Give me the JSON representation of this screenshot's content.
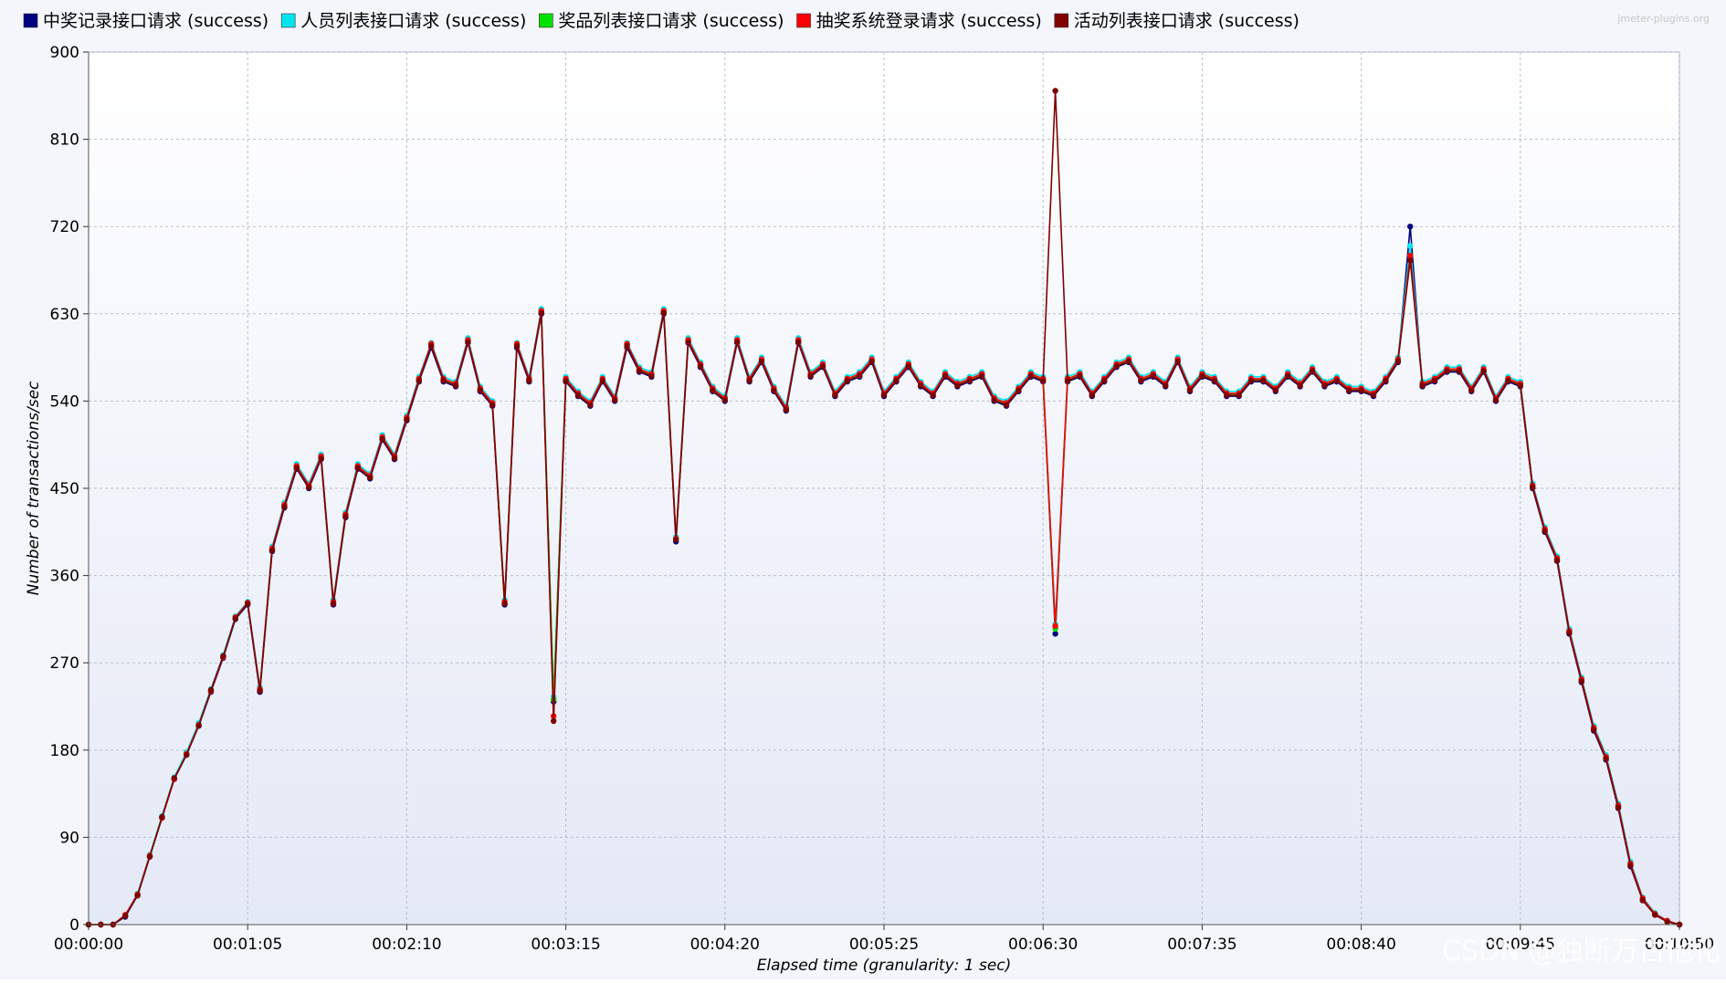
{
  "watermark": "CSDN @独断万古他化",
  "plugin_credit": "jmeter-plugins.org",
  "chart_data": {
    "type": "line",
    "ylabel": "Number of transactions/sec",
    "xlabel": "Elapsed time (granularity: 1 sec)",
    "ylim": [
      0,
      900
    ],
    "y_ticks": [
      0,
      90,
      180,
      270,
      360,
      450,
      540,
      630,
      720,
      810,
      900
    ],
    "y_tick_labels": [
      "0",
      "90",
      "180",
      "270",
      "360",
      "450",
      "540",
      "630",
      "720",
      "810",
      "900"
    ],
    "x_range_seconds": [
      0,
      650
    ],
    "x_ticks_seconds": [
      0,
      65,
      130,
      195,
      260,
      325,
      390,
      455,
      520,
      585,
      650
    ],
    "x_tick_labels": [
      "00:00:00",
      "00:01:05",
      "00:02:10",
      "00:03:15",
      "00:04:20",
      "00:05:25",
      "00:06:30",
      "00:07:35",
      "00:08:40",
      "00:09:45",
      "00:10:50"
    ],
    "grid": true,
    "legend_position": "top",
    "x_unit": "seconds elapsed",
    "x": [
      0,
      5,
      10,
      15,
      20,
      25,
      30,
      35,
      40,
      45,
      50,
      55,
      60,
      65,
      70,
      75,
      80,
      85,
      90,
      95,
      100,
      105,
      110,
      115,
      120,
      125,
      130,
      135,
      140,
      145,
      150,
      155,
      160,
      165,
      170,
      175,
      180,
      185,
      190,
      195,
      200,
      205,
      210,
      215,
      220,
      225,
      230,
      235,
      240,
      245,
      250,
      255,
      260,
      265,
      270,
      275,
      280,
      285,
      290,
      295,
      300,
      305,
      310,
      315,
      320,
      325,
      330,
      335,
      340,
      345,
      350,
      355,
      360,
      365,
      370,
      375,
      380,
      385,
      390,
      395,
      400,
      405,
      410,
      415,
      420,
      425,
      430,
      435,
      440,
      445,
      450,
      455,
      460,
      465,
      470,
      475,
      480,
      485,
      490,
      495,
      500,
      505,
      510,
      515,
      520,
      525,
      530,
      535,
      540,
      545,
      550,
      555,
      560,
      565,
      570,
      575,
      580,
      585,
      590,
      595,
      600,
      605,
      610,
      615,
      620,
      625,
      630,
      635,
      640,
      645,
      650
    ],
    "series": [
      {
        "name": "中奖记录接口请求 (success)",
        "color": "#000080",
        "values": [
          0,
          0,
          0,
          8,
          30,
          70,
          110,
          150,
          175,
          205,
          240,
          275,
          315,
          330,
          240,
          385,
          430,
          470,
          450,
          480,
          330,
          420,
          470,
          460,
          500,
          480,
          520,
          560,
          595,
          560,
          555,
          600,
          550,
          535,
          330,
          595,
          560,
          630,
          230,
          560,
          545,
          535,
          560,
          540,
          595,
          570,
          565,
          630,
          395,
          600,
          575,
          550,
          540,
          600,
          560,
          580,
          550,
          530,
          600,
          565,
          575,
          545,
          560,
          565,
          580,
          545,
          560,
          575,
          555,
          545,
          565,
          555,
          560,
          565,
          540,
          535,
          550,
          565,
          560,
          300,
          560,
          565,
          545,
          560,
          575,
          580,
          560,
          565,
          555,
          580,
          550,
          565,
          560,
          545,
          545,
          560,
          560,
          550,
          565,
          555,
          570,
          555,
          560,
          550,
          550,
          545,
          560,
          580,
          720,
          555,
          560,
          570,
          570,
          550,
          570,
          540,
          560,
          555,
          450,
          405,
          375,
          300,
          250,
          200,
          170,
          120,
          60,
          25,
          10,
          3,
          0
        ]
      },
      {
        "name": "人员列表接口请求 (success)",
        "color": "#00e5ee",
        "values": [
          0,
          0,
          0,
          10,
          32,
          72,
          112,
          152,
          178,
          208,
          243,
          278,
          318,
          333,
          245,
          390,
          435,
          475,
          455,
          485,
          335,
          425,
          475,
          465,
          505,
          485,
          525,
          565,
          600,
          565,
          560,
          605,
          555,
          540,
          335,
          600,
          565,
          635,
          235,
          565,
          550,
          540,
          565,
          545,
          600,
          575,
          570,
          635,
          400,
          605,
          580,
          555,
          545,
          605,
          565,
          585,
          555,
          535,
          605,
          570,
          580,
          550,
          565,
          570,
          585,
          550,
          565,
          580,
          560,
          550,
          570,
          560,
          565,
          570,
          545,
          540,
          555,
          570,
          565,
          310,
          565,
          570,
          550,
          565,
          580,
          585,
          565,
          570,
          560,
          585,
          555,
          570,
          565,
          550,
          550,
          565,
          565,
          555,
          570,
          560,
          575,
          560,
          565,
          555,
          555,
          550,
          565,
          585,
          700,
          560,
          565,
          575,
          575,
          555,
          575,
          545,
          565,
          560,
          455,
          410,
          380,
          305,
          255,
          205,
          175,
          125,
          65,
          28,
          12,
          4,
          0
        ]
      },
      {
        "name": "奖品列表接口请求 (success)",
        "color": "#00e000",
        "values": [
          0,
          0,
          0,
          9,
          31,
          71,
          111,
          151,
          176,
          206,
          241,
          276,
          316,
          331,
          242,
          387,
          432,
          472,
          452,
          482,
          332,
          422,
          472,
          462,
          502,
          482,
          522,
          562,
          598,
          562,
          557,
          602,
          552,
          537,
          332,
          598,
          562,
          632,
          232,
          562,
          547,
          537,
          562,
          542,
          598,
          572,
          567,
          632,
          398,
          602,
          577,
          552,
          542,
          602,
          562,
          582,
          552,
          532,
          602,
          567,
          577,
          547,
          562,
          567,
          582,
          547,
          562,
          577,
          557,
          547,
          567,
          557,
          562,
          567,
          542,
          537,
          552,
          567,
          562,
          305,
          562,
          567,
          547,
          562,
          577,
          582,
          562,
          567,
          557,
          582,
          552,
          567,
          562,
          547,
          547,
          562,
          562,
          552,
          567,
          557,
          572,
          557,
          562,
          552,
          552,
          547,
          562,
          582,
          690,
          557,
          562,
          572,
          572,
          552,
          572,
          542,
          562,
          557,
          452,
          407,
          377,
          302,
          252,
          202,
          172,
          122,
          62,
          26,
          11,
          3,
          0
        ]
      },
      {
        "name": "抽奖系统登录请求 (success)",
        "color": "#ff0000",
        "values": [
          0,
          0,
          0,
          10,
          31,
          71,
          110,
          150,
          176,
          206,
          241,
          276,
          317,
          332,
          243,
          388,
          433,
          473,
          453,
          483,
          333,
          423,
          473,
          463,
          503,
          483,
          523,
          563,
          599,
          563,
          558,
          603,
          553,
          538,
          333,
          599,
          563,
          633,
          215,
          563,
          548,
          538,
          563,
          543,
          599,
          573,
          568,
          633,
          398,
          603,
          578,
          553,
          543,
          603,
          563,
          583,
          553,
          533,
          603,
          568,
          578,
          548,
          563,
          568,
          583,
          548,
          563,
          578,
          558,
          548,
          568,
          558,
          563,
          568,
          543,
          538,
          553,
          568,
          563,
          308,
          563,
          568,
          548,
          563,
          578,
          583,
          563,
          568,
          558,
          583,
          553,
          568,
          563,
          548,
          548,
          563,
          563,
          553,
          568,
          558,
          573,
          558,
          563,
          553,
          553,
          548,
          563,
          583,
          690,
          558,
          563,
          573,
          573,
          553,
          573,
          543,
          563,
          558,
          453,
          408,
          378,
          303,
          253,
          203,
          173,
          123,
          63,
          27,
          11,
          4,
          0
        ]
      },
      {
        "name": "活动列表接口请求 (success)",
        "color": "#800000",
        "values": [
          0,
          0,
          0,
          9,
          30,
          70,
          111,
          151,
          175,
          205,
          242,
          277,
          316,
          331,
          241,
          386,
          431,
          471,
          451,
          481,
          331,
          421,
          471,
          461,
          501,
          481,
          521,
          561,
          597,
          561,
          556,
          601,
          551,
          536,
          331,
          597,
          561,
          631,
          210,
          561,
          546,
          536,
          561,
          541,
          597,
          571,
          566,
          631,
          397,
          601,
          576,
          551,
          541,
          601,
          561,
          581,
          551,
          531,
          601,
          566,
          576,
          546,
          561,
          566,
          581,
          546,
          561,
          576,
          556,
          546,
          566,
          556,
          561,
          566,
          541,
          536,
          551,
          566,
          561,
          860,
          561,
          566,
          546,
          561,
          576,
          581,
          561,
          566,
          556,
          581,
          551,
          566,
          561,
          546,
          546,
          561,
          561,
          551,
          566,
          556,
          571,
          556,
          561,
          551,
          551,
          546,
          561,
          581,
          685,
          556,
          561,
          571,
          571,
          551,
          571,
          541,
          561,
          556,
          451,
          406,
          376,
          301,
          251,
          201,
          171,
          121,
          61,
          25,
          10,
          3,
          0
        ]
      }
    ]
  }
}
